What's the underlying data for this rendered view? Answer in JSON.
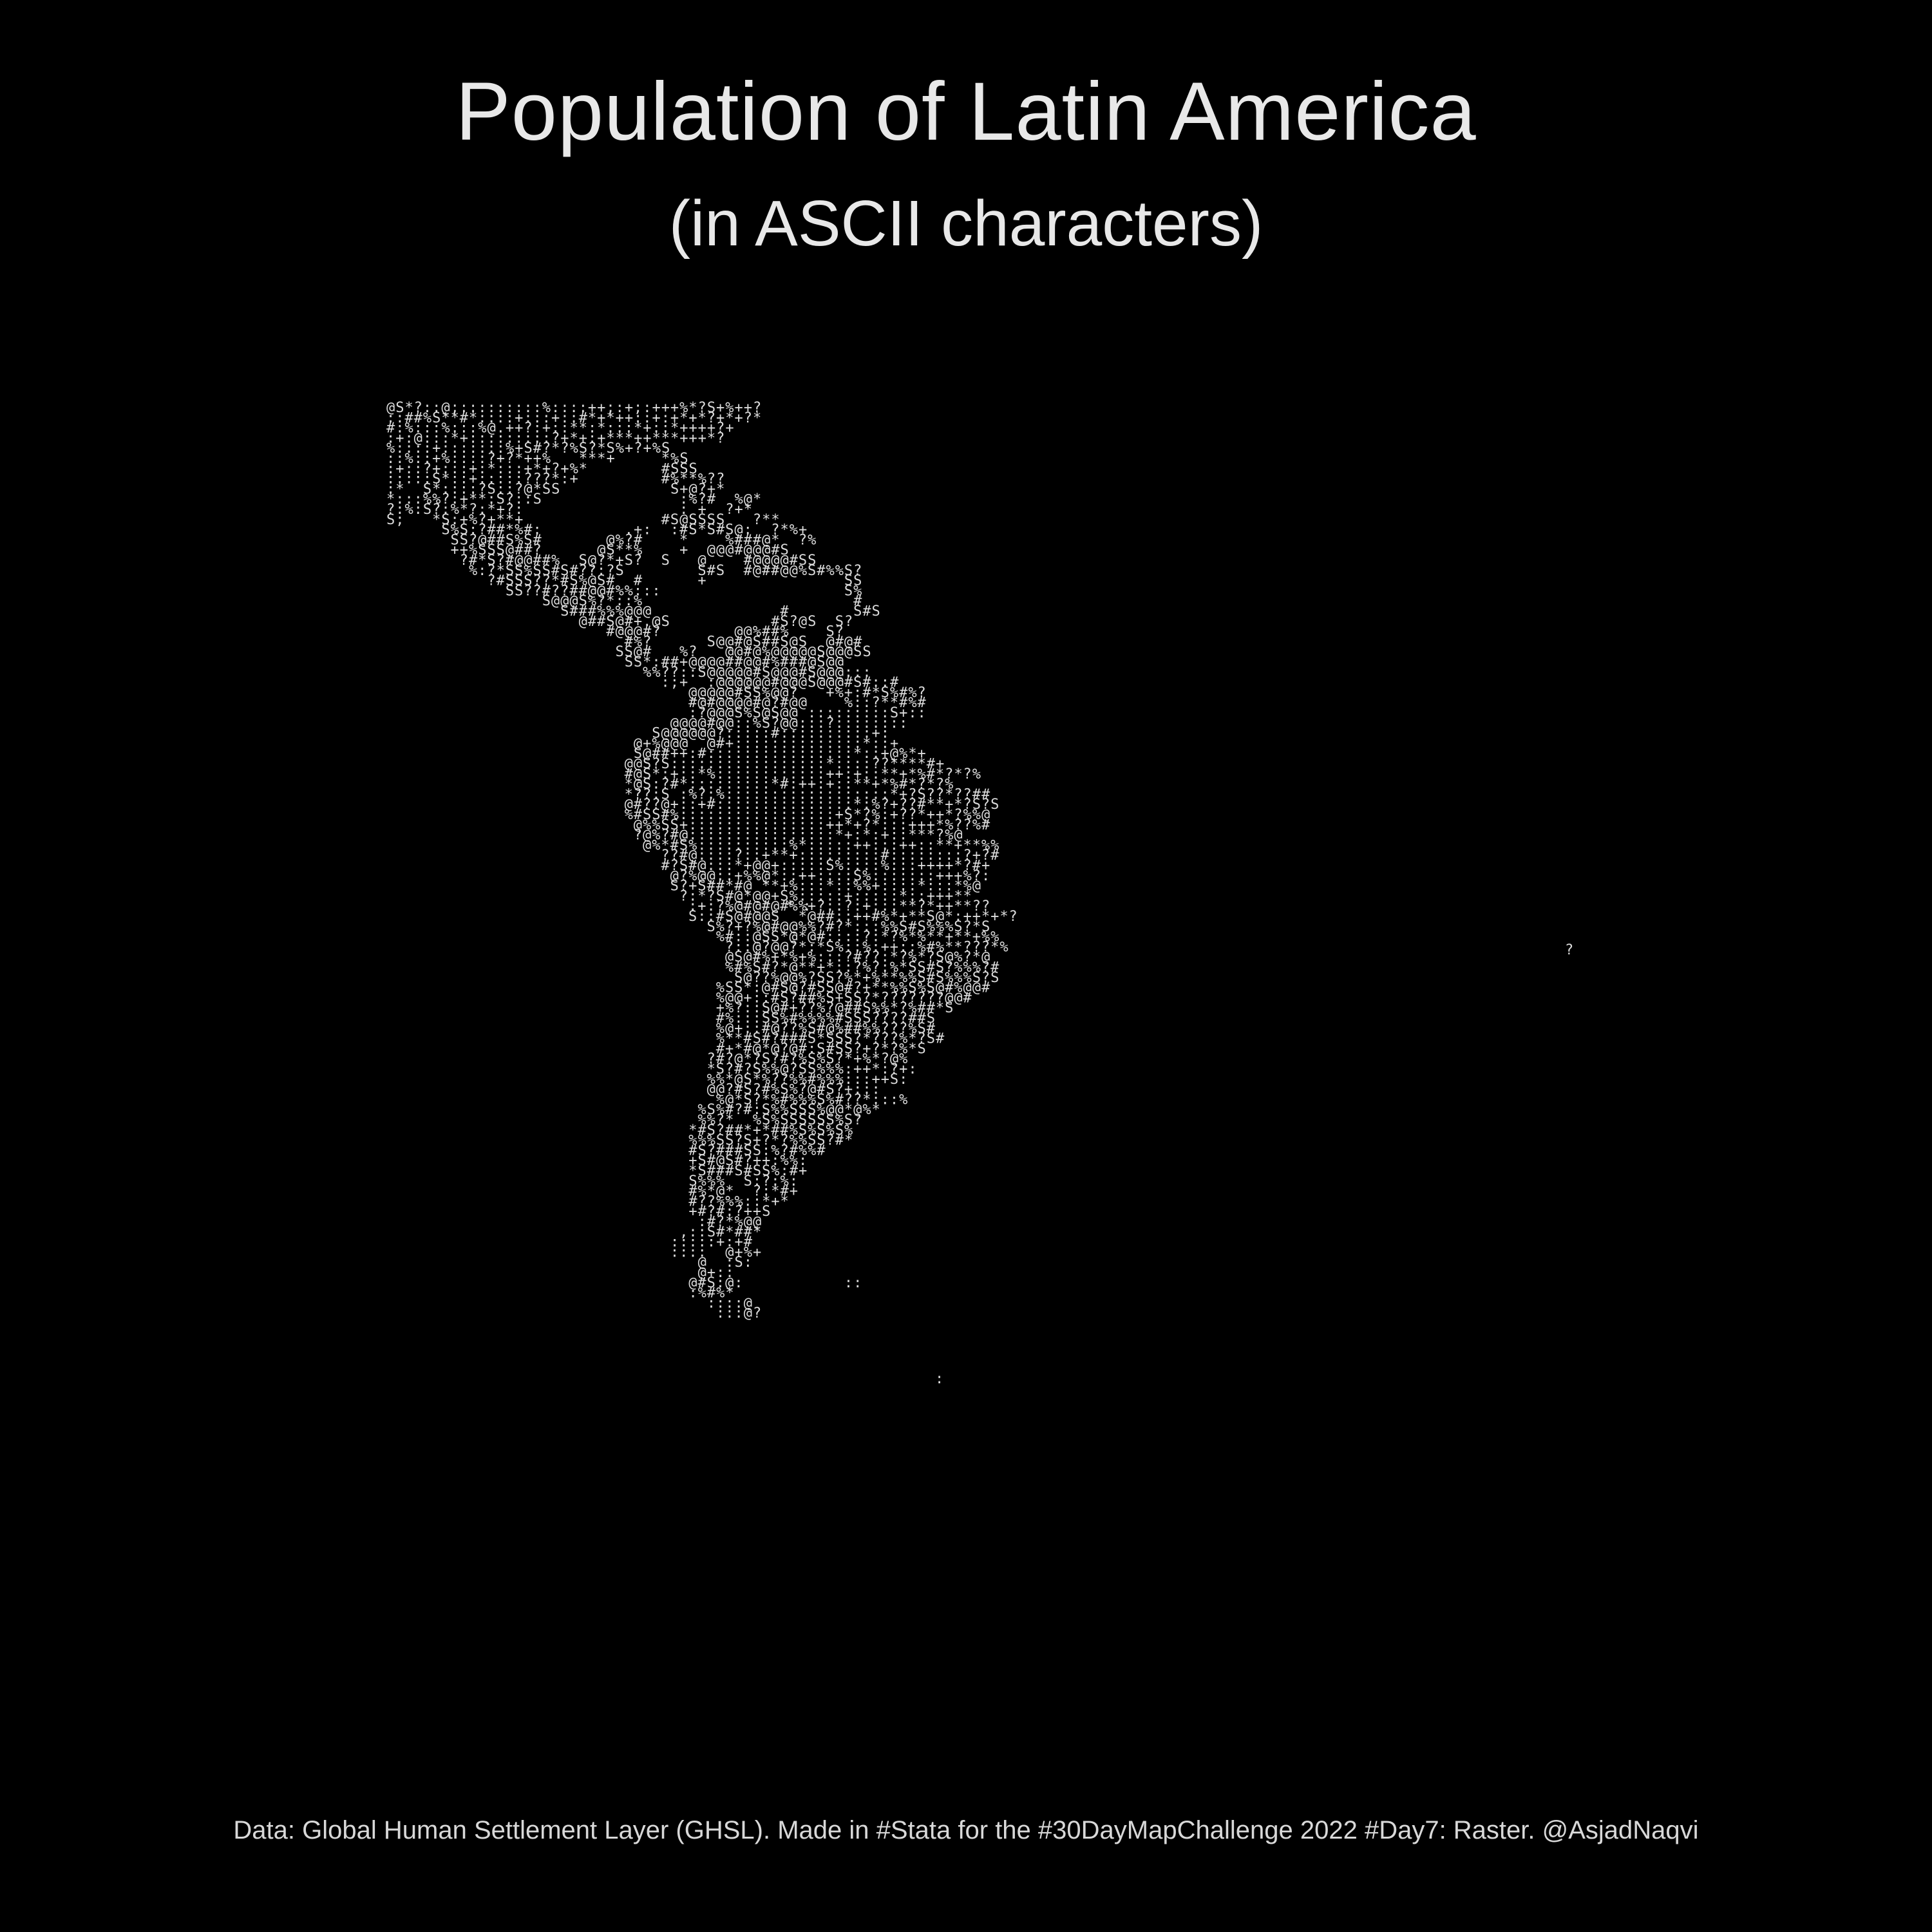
{
  "header": {
    "title": "Population of Latin America",
    "subtitle": "(in ASCII characters)"
  },
  "footer": {
    "caption": "Data: Global Human Settlement Layer (GHSL). Made in #Stata for the #30DayMapChallenge 2022 #Day7: Raster. @AsjadNaqvi"
  },
  "map": {
    "ascii_rows": [
      "@S*?::@;:::::::::%::::++;:+;:+++%*?S+%++?",
      "::##%S**#*::::+:::+::#*+*++::+:+*+*?+*+?*",
      "#:%:::%:::%@.++?:+::**:*:::*+::*++++?+",
      ":+:@:::*+:::::::::?+*+:+***++***+++*?",
      "%::::+:::::::%+S#?*?%S?*S%+?+%S",
      "::%::+%::::?+?*++%   ***+     *%S",
      ":+::?+:::+:*:::+*+?+%*        #SSS",
      ":::::S*::+:::::???*:+         #%**%??",
      ":*  S*::::?S::?@*SS            S+@?+*",
      "*:::%%?:+**:S?::S               :%?#  %@*",
      "?:%:S?:%*?:*+?:                 : +  ?+*",
      "S;   *S:+%?+**+               #S@SSSS   ?**",
      "      S%S:?##*%#:         .+:  :#S*S#S@:  ?*%+",
      "       SS?@##S%S#       @%?#    *    %###@*  ?%",
      "       ++%SSS@##?      @S**%    +  @@@#@@@#S",
      "        ?#*S?#@@##%  S@?*+S?  S   @    #@@@@#SS",
      "         %:?*SS%SS#S#??:?S        S#S  #@##@@%S#%%S?",
      "           ?#SSS??*#S%@S#  #      +               SS",
      "             SS??#??##@@#%%:::                    S%",
      "                 S@@@S%?*::%                       #",
      "                   S###%%%@@@              #       S#S",
      "                     @##S@#+.@S           #S?@S  S?",
      "                        #@@@#?        @@%##%    S?",
      "                          #%?      S@@#@S##S@S  @#@#",
      "                         SS@#   %?   @@#@%@@@@@S@@@SS",
      "                          SS*:##+@@@@##@@#%###@S@@",
      "                            %%??::S@@@@@#S@@@#S@@@:::",
      "                              :;+  :@@@@@@#@@@S@@@#S#::#",
      "                                 @@@@@#SS%@@?   +%+:#*S%#%?",
      "                                 #@#@@@@#@?#@@    %::?**#%#",
      "                                 :?@@@S%S@S@@ :::::::::S+::",
      "                               @@@@#@@::%S?@@:::?::::::::",
      "                             S@@@@@@?:::::#::::::::::+:",
      "                           @+%@@@  @#+::::::::::::::*::+",
      "                           S@##++:#::::::::::::::::*::+@%*+",
      "                          @@S?S:::::::::::::::::*::::??****#+",
      "                          #@S*:+::*%::::::::::::++:+::**+*%#*?*?%",
      "                          *@S:?#*:::::::::*#:++:+::**+*%#*?*?%",
      "                          *??:S :%?:%::::::::::::::::::*+?S??*??##",
      "                          @#??@+::+#:::::::::::::::*:%?+??#**+*?S?S",
      "                          %#SS#%:::::::::::::::::+S*?%:+??*++*?%%@",
      "                           @%%SS+:::::::::::::::++*+?*:::+++*%??%#",
      "                           ?@%?#@::::::::::::::::*+:*:+::***?%@",
      "                            @%*#S%::::::::::%*:::::++:::++::**+**%%",
      "                              ??#@::::?::+**+:::::::::#::::::::?+?#",
      "                              #?S#@:::*+@@+:::::S%::::%:::++++*?#+",
      "                               @?%@@::+%%@*::++::::S%:::::::+++%?:",
      "                               S?+S##*#@ **+%:::*::%%+::::*:::*%@",
      "                                ?:*?S#@*@@+S%:::::+:::::*::+++**",
      "                                 :+:?%@#@#@#%%+?::?:+:::**?*++**??",
      "                                 S::#S@#@@S  *@##::++#%*+**S@*:++*+*?",
      "                                   S%?+?%@#@@%%?#?*:::%%S#S%%%S?*S",
      "                                    %#::@SS*@*@#::::?:*?%*%**+**+%%",
      "                                     ?::@?@@?*:*S%::%:++::%#%**???*%",
      "                                     @S@#%+*%+%:::?#??:*?%*?S@%?*@",
      "                                     %#%S#?*@**+*::?%?:%*SS#S?%%%?#",
      "                                      S@??%@@%?SS?%*+%**%%S#S%%%S?S",
      "                                    %SS*:@#S@?#SS@#?+**%%S%S@#%@@#",
      "                                    %@@+::#S?##%S+SS?*???????@@#",
      "                                    +%?::S@#+??%?@##S%%*?%##*S",
      "                                    #%:::SS%#%%%%#SSS????##S",
      "                                    %@+::#@??%S#@%##%%???%S#",
      "                                    %**#S#?###S*SSS?*???%*?S#",
      "                                    #+*#@*@?@#:S#SS?+?*?%*S",
      "                                   ?#?@*?S?#?%S%S?*+%*?@%",
      "                                   *S?#?S%%@?SS%%%:++*:?+:",
      "                                   %%*@S*%??%%#%%%:::++S:",
      "                                   @@?#S?#%S%?@#S?+:::",
      "                                    %@*S?*%#%%%S%#??*:::%",
      "                                  %S%#?#:S%%SSS%@@*@%*",
      "                                  %%?*  %S%SSSSSS%S?",
      "                                 *#S?##*+*##%S%S%S%",
      "                                 %%%SS?S+?*?%%SS?#*",
      "                                 #S?###SS:%?#%%#",
      "                                 +S#@S#?++:%%:",
      "                                 *S###S#SS%:#+",
      "                                 S%%%  S:?:%:",
      "                                 #%*@*  ?:*#+",
      "                                 #??%%%::*+*",
      "                                 +#?#:?++S",
      "                                  :#?*%@@",
      "                                ,::S#*##*",
      "                               :::::+:+#",
      "                               ::::  @+%+",
      "                                  @  :S:",
      "                                  @+::",
      "                                 @#S:@:           ::",
      "                                 :%#%*",
      "                                   ::::@",
      "                                    :::@?"
    ]
  }
}
